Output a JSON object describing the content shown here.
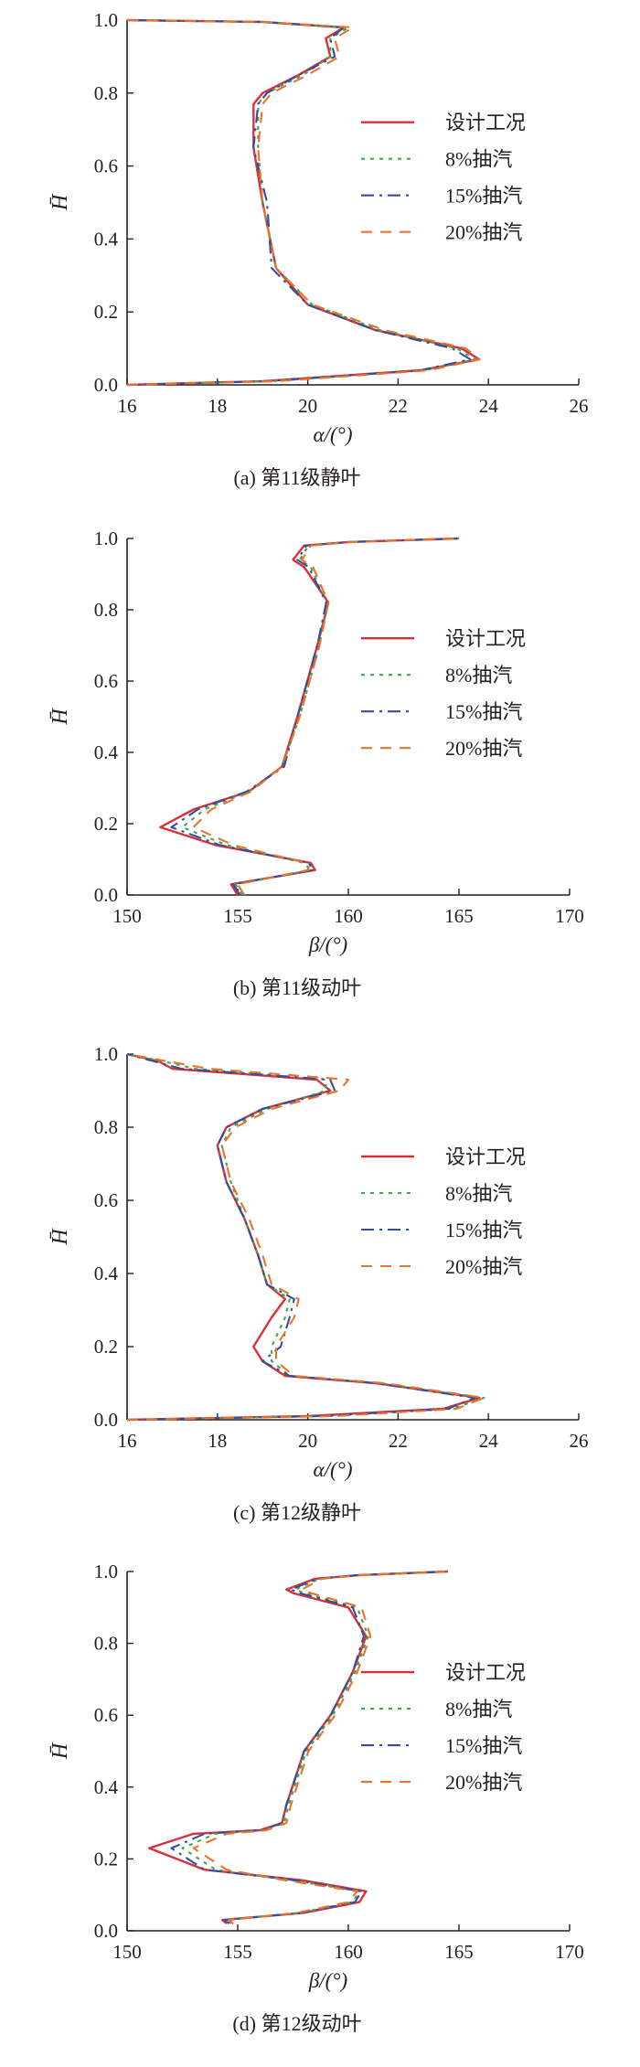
{
  "chart_data": [
    {
      "type": "line",
      "caption": "(a) 第11级静叶",
      "xlabel": "α/(°)",
      "ylabel": "H̄",
      "xlim": [
        16,
        26
      ],
      "ylim": [
        0,
        1.0
      ],
      "xticks": [
        "16",
        "18",
        "20",
        "22",
        "24",
        "26"
      ],
      "yticks": [
        "0.0",
        "0.2",
        "0.4",
        "0.6",
        "0.8",
        "1.0"
      ],
      "legend_position": "right",
      "series": [
        {
          "name": "设计工况",
          "x": [
            16.0,
            19.0,
            22.5,
            23.8,
            23.4,
            21.5,
            20.0,
            19.3,
            19.0,
            18.8,
            18.8,
            19.0,
            19.8,
            20.5,
            20.4,
            20.8,
            19.0,
            16.0
          ],
          "y": [
            0.0,
            0.01,
            0.04,
            0.07,
            0.1,
            0.15,
            0.22,
            0.32,
            0.5,
            0.65,
            0.77,
            0.8,
            0.85,
            0.9,
            0.95,
            0.98,
            0.995,
            1.0
          ]
        },
        {
          "name": "8%抽汽",
          "x": [
            16.0,
            19.2,
            22.6,
            23.7,
            23.3,
            21.6,
            20.1,
            19.3,
            19.0,
            18.9,
            18.9,
            19.1,
            19.9,
            20.5,
            20.5,
            20.9,
            19.0,
            16.0
          ],
          "y": [
            0.0,
            0.01,
            0.04,
            0.07,
            0.1,
            0.15,
            0.22,
            0.32,
            0.5,
            0.65,
            0.77,
            0.8,
            0.85,
            0.9,
            0.95,
            0.98,
            0.995,
            1.0
          ]
        },
        {
          "name": "15%抽汽",
          "x": [
            16.0,
            19.1,
            22.5,
            23.6,
            23.2,
            21.5,
            20.0,
            19.2,
            19.1,
            18.8,
            18.9,
            19.1,
            19.8,
            20.6,
            20.5,
            20.8,
            19.0,
            16.0
          ],
          "y": [
            0.0,
            0.01,
            0.04,
            0.07,
            0.1,
            0.15,
            0.22,
            0.32,
            0.5,
            0.65,
            0.77,
            0.8,
            0.85,
            0.9,
            0.95,
            0.98,
            0.995,
            1.0
          ]
        },
        {
          "name": "20%抽汽",
          "x": [
            16.0,
            19.3,
            22.7,
            23.8,
            23.5,
            21.7,
            20.1,
            19.3,
            19.0,
            18.9,
            19.0,
            19.2,
            20.0,
            20.7,
            20.6,
            21.0,
            19.0,
            16.0
          ],
          "y": [
            0.0,
            0.01,
            0.04,
            0.07,
            0.1,
            0.15,
            0.22,
            0.32,
            0.5,
            0.65,
            0.77,
            0.8,
            0.85,
            0.9,
            0.95,
            0.98,
            0.995,
            1.0
          ]
        }
      ]
    },
    {
      "type": "line",
      "caption": "(b) 第11级动叶",
      "xlabel": "β/(°)",
      "ylabel": "H̄",
      "xlim": [
        150,
        170
      ],
      "ylim": [
        0,
        1.0
      ],
      "xticks": [
        "150",
        "155",
        "160",
        "165",
        "170"
      ],
      "yticks": [
        "0.0",
        "0.2",
        "0.4",
        "0.6",
        "0.8",
        "1.0"
      ],
      "legend_position": "right",
      "series": [
        {
          "name": "设计工况",
          "x": [
            155.0,
            154.7,
            158.5,
            158.3,
            154.0,
            151.5,
            153.0,
            155.5,
            157.0,
            157.7,
            158.6,
            159.1,
            158.0,
            157.5,
            158.0,
            160.0,
            165.0
          ],
          "y": [
            0.0,
            0.03,
            0.07,
            0.09,
            0.14,
            0.19,
            0.24,
            0.29,
            0.36,
            0.5,
            0.7,
            0.82,
            0.92,
            0.94,
            0.98,
            0.99,
            1.0
          ]
        },
        {
          "name": "8%抽汽",
          "x": [
            155.2,
            154.9,
            158.3,
            158.0,
            154.5,
            152.5,
            153.5,
            155.5,
            157.0,
            157.8,
            158.7,
            159.0,
            158.3,
            157.8,
            158.2,
            160.1,
            165.0
          ],
          "y": [
            0.0,
            0.03,
            0.07,
            0.09,
            0.14,
            0.19,
            0.24,
            0.29,
            0.36,
            0.5,
            0.7,
            0.82,
            0.92,
            0.94,
            0.98,
            0.99,
            1.0
          ]
        },
        {
          "name": "15%抽汽",
          "x": [
            155.1,
            154.8,
            158.4,
            158.2,
            154.2,
            152.0,
            153.2,
            155.4,
            157.1,
            157.7,
            158.6,
            159.0,
            158.2,
            157.7,
            158.1,
            160.0,
            165.0
          ],
          "y": [
            0.0,
            0.03,
            0.07,
            0.09,
            0.14,
            0.19,
            0.24,
            0.29,
            0.36,
            0.5,
            0.7,
            0.82,
            0.92,
            0.94,
            0.98,
            0.99,
            1.0
          ]
        },
        {
          "name": "20%抽汽",
          "x": [
            155.3,
            155.0,
            158.2,
            158.1,
            154.8,
            153.0,
            153.8,
            155.6,
            157.0,
            157.8,
            158.7,
            159.1,
            158.4,
            157.9,
            158.3,
            160.2,
            165.0
          ],
          "y": [
            0.0,
            0.03,
            0.07,
            0.09,
            0.14,
            0.19,
            0.24,
            0.29,
            0.36,
            0.5,
            0.7,
            0.82,
            0.92,
            0.94,
            0.98,
            0.99,
            1.0
          ]
        }
      ]
    },
    {
      "type": "line",
      "caption": "(c) 第12级静叶",
      "xlabel": "α/(°)",
      "ylabel": "H̄",
      "xlim": [
        16,
        26
      ],
      "ylim": [
        0,
        1.0
      ],
      "xticks": [
        "16",
        "18",
        "20",
        "22",
        "24",
        "26"
      ],
      "yticks": [
        "0.0",
        "0.2",
        "0.4",
        "0.6",
        "0.8",
        "1.0"
      ],
      "legend_position": "right",
      "series": [
        {
          "name": "设计工况",
          "x": [
            16.0,
            20.0,
            23.0,
            23.8,
            21.5,
            19.5,
            19.0,
            18.8,
            19.2,
            19.5,
            19.1,
            18.9,
            18.6,
            18.2,
            18.0,
            18.2,
            19.0,
            20.5,
            20.2,
            17.0,
            16.7,
            16.0
          ],
          "y": [
            0.0,
            0.01,
            0.03,
            0.06,
            0.1,
            0.12,
            0.16,
            0.2,
            0.28,
            0.33,
            0.37,
            0.45,
            0.55,
            0.65,
            0.75,
            0.8,
            0.85,
            0.9,
            0.93,
            0.96,
            0.98,
            1.0
          ]
        },
        {
          "name": "8%抽汽",
          "x": [
            16.0,
            20.5,
            23.2,
            23.9,
            21.6,
            19.6,
            19.2,
            19.2,
            19.5,
            19.6,
            19.1,
            18.9,
            18.6,
            18.3,
            18.1,
            18.3,
            19.1,
            20.4,
            20.4,
            17.5,
            16.8,
            16.0
          ],
          "y": [
            0.0,
            0.01,
            0.03,
            0.06,
            0.1,
            0.12,
            0.16,
            0.2,
            0.28,
            0.33,
            0.37,
            0.45,
            0.55,
            0.65,
            0.75,
            0.8,
            0.85,
            0.9,
            0.93,
            0.96,
            0.98,
            1.0
          ]
        },
        {
          "name": "15%抽汽",
          "x": [
            16.0,
            20.3,
            23.1,
            23.7,
            21.5,
            19.6,
            19.0,
            19.4,
            19.6,
            19.7,
            19.1,
            18.9,
            18.6,
            18.2,
            18.0,
            18.2,
            19.0,
            20.6,
            20.5,
            17.2,
            16.6,
            16.0
          ],
          "y": [
            0.0,
            0.01,
            0.03,
            0.06,
            0.1,
            0.12,
            0.16,
            0.2,
            0.28,
            0.33,
            0.37,
            0.45,
            0.55,
            0.65,
            0.75,
            0.8,
            0.85,
            0.9,
            0.93,
            0.96,
            0.98,
            1.0
          ]
        },
        {
          "name": "20%抽汽",
          "x": [
            16.0,
            20.6,
            23.3,
            23.9,
            21.7,
            19.7,
            19.3,
            19.3,
            19.7,
            19.8,
            19.2,
            19.0,
            18.7,
            18.3,
            18.1,
            18.4,
            19.2,
            20.7,
            20.9,
            17.8,
            16.9,
            16.0
          ],
          "y": [
            0.0,
            0.01,
            0.03,
            0.06,
            0.1,
            0.12,
            0.16,
            0.2,
            0.28,
            0.33,
            0.37,
            0.45,
            0.55,
            0.65,
            0.75,
            0.8,
            0.85,
            0.9,
            0.93,
            0.96,
            0.98,
            1.0
          ]
        }
      ]
    },
    {
      "type": "line",
      "caption": "(d) 第12级动叶",
      "xlabel": "β/(°)",
      "ylabel": "H̄",
      "xlim": [
        150,
        170
      ],
      "ylim": [
        0,
        1.0
      ],
      "xticks": [
        "150",
        "155",
        "160",
        "165",
        "170"
      ],
      "yticks": [
        "0.0",
        "0.2",
        "0.4",
        "0.6",
        "0.8",
        "1.0"
      ],
      "legend_position": "right",
      "series": [
        {
          "name": "设计工况",
          "x": [
            154.5,
            154.3,
            158.0,
            160.5,
            160.8,
            158.0,
            153.5,
            151.0,
            153.0,
            156.0,
            157.0,
            157.2,
            158.0,
            159.2,
            160.2,
            160.8,
            160.0,
            157.5,
            157.2,
            158.5,
            160.5,
            164.5
          ],
          "y": [
            0.02,
            0.03,
            0.05,
            0.08,
            0.11,
            0.14,
            0.17,
            0.23,
            0.27,
            0.28,
            0.3,
            0.35,
            0.5,
            0.6,
            0.72,
            0.82,
            0.9,
            0.94,
            0.95,
            0.98,
            0.99,
            1.0
          ]
        },
        {
          "name": "8%抽汽",
          "x": [
            154.7,
            154.5,
            157.8,
            160.2,
            160.5,
            157.5,
            154.0,
            152.5,
            154.0,
            156.2,
            157.1,
            157.3,
            158.1,
            159.3,
            160.3,
            160.9,
            160.4,
            158.0,
            157.6,
            158.7,
            160.6,
            164.5
          ],
          "y": [
            0.02,
            0.03,
            0.05,
            0.08,
            0.11,
            0.14,
            0.17,
            0.23,
            0.27,
            0.28,
            0.3,
            0.35,
            0.5,
            0.6,
            0.72,
            0.82,
            0.9,
            0.94,
            0.95,
            0.98,
            0.99,
            1.0
          ]
        },
        {
          "name": "15%抽汽",
          "x": [
            154.6,
            154.4,
            157.9,
            160.3,
            160.6,
            157.7,
            153.5,
            152.0,
            153.5,
            156.1,
            157.0,
            157.2,
            158.0,
            159.2,
            160.2,
            160.7,
            160.2,
            157.8,
            157.4,
            158.6,
            160.5,
            164.5
          ],
          "y": [
            0.02,
            0.03,
            0.05,
            0.08,
            0.11,
            0.14,
            0.17,
            0.23,
            0.27,
            0.28,
            0.3,
            0.35,
            0.5,
            0.6,
            0.72,
            0.82,
            0.9,
            0.94,
            0.95,
            0.98,
            0.99,
            1.0
          ]
        },
        {
          "name": "20%抽汽",
          "x": [
            154.8,
            154.6,
            157.7,
            160.0,
            160.4,
            157.2,
            154.5,
            153.0,
            154.5,
            156.3,
            157.2,
            157.4,
            158.2,
            159.4,
            160.4,
            161.0,
            160.6,
            158.3,
            157.9,
            158.8,
            160.7,
            164.5
          ],
          "y": [
            0.02,
            0.03,
            0.05,
            0.08,
            0.11,
            0.14,
            0.17,
            0.23,
            0.27,
            0.28,
            0.3,
            0.35,
            0.5,
            0.6,
            0.72,
            0.82,
            0.9,
            0.94,
            0.95,
            0.98,
            0.99,
            1.0
          ]
        }
      ]
    }
  ],
  "series_colors": [
    "#d7323a",
    "#3aaa4a",
    "#2f4fa1",
    "#e8742c"
  ],
  "series_dash": [
    "solid",
    "dotted",
    "dashdot",
    "dashed"
  ]
}
